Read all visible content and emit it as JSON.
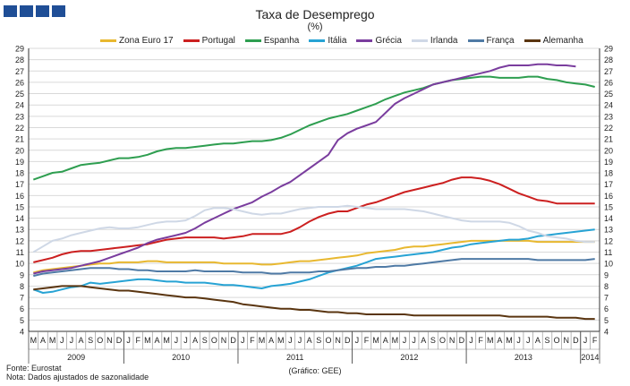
{
  "header": {
    "title": "Taxa de Desemprego",
    "subtitle": "(%)"
  },
  "footer": {
    "source": "Fonte: Eurostat",
    "note": "Nota: Dados ajustados de sazonalidade",
    "credit": "(Gráfico: GEE)"
  },
  "colors": {
    "logo": "#1f4e96",
    "grid": "#d9d9d9",
    "axis": "#333333"
  },
  "chart_data": {
    "type": "line",
    "title": "Taxa de Desemprego",
    "subtitle": "(%)",
    "ylim": [
      4,
      29
    ],
    "y_ticks": [
      4,
      5,
      6,
      7,
      8,
      9,
      10,
      11,
      12,
      13,
      14,
      15,
      16,
      17,
      18,
      19,
      20,
      21,
      22,
      23,
      24,
      25,
      26,
      27,
      28,
      29
    ],
    "y_axis_both_sides": true,
    "grid": "horizontal",
    "legend": "top",
    "x": [
      "2009-03",
      "2009-04",
      "2009-05",
      "2009-06",
      "2009-07",
      "2009-08",
      "2009-09",
      "2009-10",
      "2009-11",
      "2009-12",
      "2010-01",
      "2010-02",
      "2010-03",
      "2010-04",
      "2010-05",
      "2010-06",
      "2010-07",
      "2010-08",
      "2010-09",
      "2010-10",
      "2010-11",
      "2010-12",
      "2011-01",
      "2011-02",
      "2011-03",
      "2011-04",
      "2011-05",
      "2011-06",
      "2011-07",
      "2011-08",
      "2011-09",
      "2011-10",
      "2011-11",
      "2011-12",
      "2012-01",
      "2012-02",
      "2012-03",
      "2012-04",
      "2012-05",
      "2012-06",
      "2012-07",
      "2012-08",
      "2012-09",
      "2012-10",
      "2012-11",
      "2012-12",
      "2013-01",
      "2013-02",
      "2013-03",
      "2013-04",
      "2013-05",
      "2013-06",
      "2013-07",
      "2013-08",
      "2013-09",
      "2013-10",
      "2013-11",
      "2013-12",
      "2014-01",
      "2014-02"
    ],
    "month_labels": [
      "M",
      "A",
      "M",
      "J",
      "J",
      "A",
      "S",
      "O",
      "N",
      "D",
      "J",
      "F",
      "M",
      "A",
      "M",
      "J",
      "J",
      "A",
      "S",
      "O",
      "N",
      "D",
      "J",
      "F",
      "M",
      "A",
      "M",
      "J",
      "J",
      "A",
      "S",
      "O",
      "N",
      "D",
      "J",
      "F",
      "M",
      "A",
      "M",
      "J",
      "J",
      "A",
      "S",
      "O",
      "N",
      "D",
      "J",
      "F",
      "M",
      "A",
      "M",
      "J",
      "J",
      "A",
      "S",
      "O",
      "N",
      "D",
      "J",
      "F"
    ],
    "year_labels": [
      {
        "label": "2009",
        "start": 0,
        "end": 9
      },
      {
        "label": "2010",
        "start": 10,
        "end": 21
      },
      {
        "label": "2011",
        "start": 22,
        "end": 33
      },
      {
        "label": "2012",
        "start": 34,
        "end": 45
      },
      {
        "label": "2013",
        "start": 46,
        "end": 57
      },
      {
        "label": "2014",
        "start": 58,
        "end": 59
      }
    ],
    "series": [
      {
        "name": "Zona Euro 17",
        "color": "#e8b830",
        "values": [
          9.2,
          9.4,
          9.5,
          9.6,
          9.7,
          9.8,
          9.9,
          10.0,
          10.0,
          10.1,
          10.1,
          10.1,
          10.2,
          10.2,
          10.1,
          10.1,
          10.1,
          10.1,
          10.1,
          10.1,
          10.0,
          10.0,
          10.0,
          10.0,
          9.9,
          9.9,
          10.0,
          10.1,
          10.2,
          10.2,
          10.3,
          10.4,
          10.5,
          10.6,
          10.7,
          10.9,
          11.0,
          11.1,
          11.2,
          11.4,
          11.5,
          11.5,
          11.6,
          11.7,
          11.8,
          11.9,
          12.0,
          12.0,
          12.0,
          12.0,
          12.0,
          12.0,
          12.0,
          11.9,
          11.9,
          11.9,
          11.9,
          11.9,
          11.9,
          11.9
        ]
      },
      {
        "name": "Portugal",
        "color": "#cc2020",
        "values": [
          10.1,
          10.3,
          10.5,
          10.8,
          11.0,
          11.1,
          11.1,
          11.2,
          11.3,
          11.4,
          11.5,
          11.6,
          11.7,
          11.9,
          12.1,
          12.2,
          12.3,
          12.3,
          12.3,
          12.3,
          12.2,
          12.3,
          12.4,
          12.6,
          12.6,
          12.6,
          12.6,
          12.8,
          13.2,
          13.7,
          14.1,
          14.4,
          14.6,
          14.6,
          14.9,
          15.2,
          15.4,
          15.7,
          16.0,
          16.3,
          16.5,
          16.7,
          16.9,
          17.1,
          17.4,
          17.6,
          17.6,
          17.5,
          17.3,
          17.0,
          16.6,
          16.2,
          15.9,
          15.6,
          15.5,
          15.3,
          15.3,
          15.3,
          15.3,
          15.3
        ]
      },
      {
        "name": "Espanha",
        "color": "#2e9e50",
        "values": [
          17.4,
          17.7,
          18.0,
          18.1,
          18.4,
          18.7,
          18.8,
          18.9,
          19.1,
          19.3,
          19.3,
          19.4,
          19.6,
          19.9,
          20.1,
          20.2,
          20.2,
          20.3,
          20.4,
          20.5,
          20.6,
          20.6,
          20.7,
          20.8,
          20.8,
          20.9,
          21.1,
          21.4,
          21.8,
          22.2,
          22.5,
          22.8,
          23.0,
          23.2,
          23.5,
          23.8,
          24.1,
          24.5,
          24.8,
          25.1,
          25.3,
          25.5,
          25.8,
          26.0,
          26.2,
          26.3,
          26.4,
          26.5,
          26.5,
          26.4,
          26.4,
          26.4,
          26.5,
          26.5,
          26.3,
          26.2,
          26.0,
          25.9,
          25.8,
          25.6
        ]
      },
      {
        "name": "Itália",
        "color": "#27a3d4",
        "values": [
          7.7,
          7.4,
          7.5,
          7.7,
          7.9,
          8.0,
          8.3,
          8.2,
          8.3,
          8.4,
          8.5,
          8.6,
          8.6,
          8.5,
          8.4,
          8.4,
          8.3,
          8.3,
          8.3,
          8.2,
          8.1,
          8.1,
          8.0,
          7.9,
          7.8,
          8.0,
          8.1,
          8.2,
          8.4,
          8.6,
          8.9,
          9.2,
          9.4,
          9.6,
          9.8,
          10.1,
          10.4,
          10.5,
          10.6,
          10.7,
          10.8,
          10.9,
          11.0,
          11.2,
          11.4,
          11.5,
          11.7,
          11.8,
          11.9,
          12.0,
          12.1,
          12.1,
          12.2,
          12.4,
          12.5,
          12.6,
          12.7,
          12.8,
          12.9,
          13.0
        ]
      },
      {
        "name": "Grécia",
        "color": "#7a3d9e",
        "values": [
          9.1,
          9.3,
          9.4,
          9.5,
          9.6,
          9.8,
          10.0,
          10.2,
          10.5,
          10.8,
          11.1,
          11.4,
          11.8,
          12.1,
          12.3,
          12.5,
          12.7,
          13.1,
          13.6,
          14.0,
          14.4,
          14.8,
          15.1,
          15.4,
          15.9,
          16.3,
          16.8,
          17.2,
          17.8,
          18.4,
          19.0,
          19.6,
          20.9,
          21.5,
          21.9,
          22.2,
          22.5,
          23.3,
          24.1,
          24.6,
          25.0,
          25.4,
          25.8,
          26.0,
          26.2,
          26.4,
          26.6,
          26.8,
          27.0,
          27.3,
          27.5,
          27.5,
          27.5,
          27.6,
          27.6,
          27.5,
          27.5,
          27.4,
          null,
          null
        ]
      },
      {
        "name": "Irlanda",
        "color": "#cfd8e6",
        "values": [
          11.0,
          11.5,
          12.0,
          12.2,
          12.5,
          12.7,
          12.9,
          13.1,
          13.2,
          13.1,
          13.1,
          13.2,
          13.4,
          13.6,
          13.7,
          13.7,
          13.8,
          14.2,
          14.7,
          14.9,
          14.9,
          14.8,
          14.6,
          14.4,
          14.3,
          14.4,
          14.4,
          14.6,
          14.8,
          14.9,
          15.0,
          15.0,
          15.0,
          15.1,
          15.0,
          14.9,
          14.8,
          14.8,
          14.8,
          14.8,
          14.7,
          14.6,
          14.4,
          14.2,
          14.0,
          13.8,
          13.7,
          13.7,
          13.7,
          13.7,
          13.6,
          13.3,
          12.9,
          12.7,
          12.4,
          12.3,
          12.2,
          12.0,
          11.9,
          11.9
        ]
      },
      {
        "name": "França",
        "color": "#4f7aa5",
        "values": [
          8.9,
          9.1,
          9.2,
          9.3,
          9.4,
          9.5,
          9.6,
          9.6,
          9.6,
          9.5,
          9.5,
          9.4,
          9.4,
          9.3,
          9.3,
          9.3,
          9.3,
          9.4,
          9.3,
          9.3,
          9.3,
          9.3,
          9.2,
          9.2,
          9.2,
          9.1,
          9.1,
          9.2,
          9.2,
          9.2,
          9.3,
          9.3,
          9.4,
          9.5,
          9.6,
          9.6,
          9.7,
          9.7,
          9.8,
          9.8,
          9.9,
          10.0,
          10.1,
          10.2,
          10.3,
          10.4,
          10.4,
          10.4,
          10.4,
          10.4,
          10.4,
          10.4,
          10.4,
          10.3,
          10.3,
          10.3,
          10.3,
          10.3,
          10.3,
          10.4
        ]
      },
      {
        "name": "Alemanha",
        "color": "#5a3510",
        "values": [
          7.7,
          7.8,
          7.9,
          8.0,
          8.0,
          8.0,
          7.9,
          7.8,
          7.7,
          7.6,
          7.6,
          7.5,
          7.4,
          7.3,
          7.2,
          7.1,
          7.0,
          7.0,
          6.9,
          6.8,
          6.7,
          6.6,
          6.4,
          6.3,
          6.2,
          6.1,
          6.0,
          6.0,
          5.9,
          5.9,
          5.8,
          5.7,
          5.7,
          5.6,
          5.6,
          5.5,
          5.5,
          5.5,
          5.5,
          5.5,
          5.4,
          5.4,
          5.4,
          5.4,
          5.4,
          5.4,
          5.4,
          5.4,
          5.4,
          5.4,
          5.3,
          5.3,
          5.3,
          5.3,
          5.3,
          5.2,
          5.2,
          5.2,
          5.1,
          5.1
        ]
      }
    ]
  }
}
